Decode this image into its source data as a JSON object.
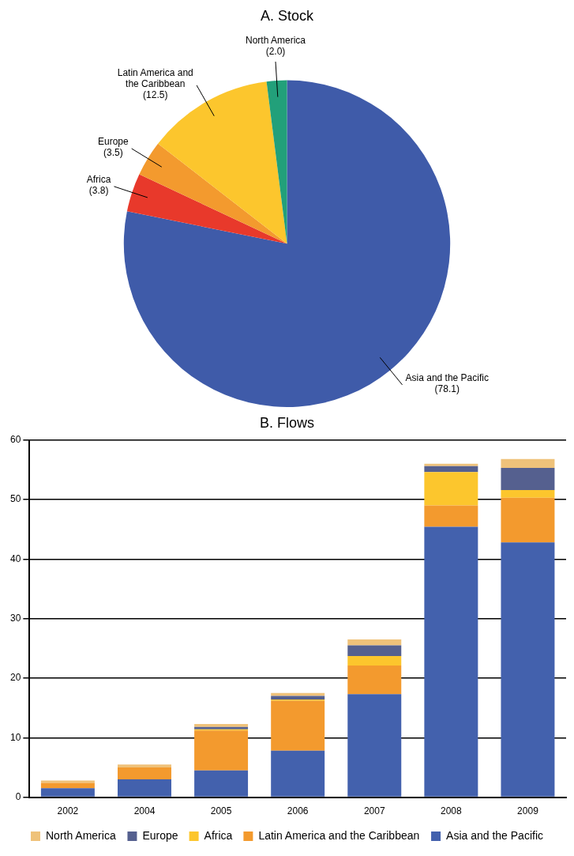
{
  "chart_data": [
    {
      "type": "pie",
      "title": "A. Stock",
      "categories": [
        "Asia and the Pacific",
        "Africa",
        "Europe",
        "Latin America and the Caribbean",
        "North America"
      ],
      "values": [
        78.1,
        3.8,
        3.5,
        12.5,
        2.0
      ],
      "value_labels": [
        "(78.1)",
        "(3.8)",
        "(3.5)",
        "(12.5)",
        "(2.0)"
      ],
      "colors": [
        "#3f5ba9",
        "#e8392b",
        "#f39a2e",
        "#fcc62d",
        "#22a07a"
      ]
    },
    {
      "type": "bar",
      "title": "B. Flows",
      "categories": [
        "2002",
        "2004",
        "2005",
        "2006",
        "2007",
        "2008",
        "2009"
      ],
      "stacked": true,
      "legend": "bottom",
      "grid": "y",
      "ylim": [
        0,
        60
      ],
      "yticks": [
        0,
        10,
        20,
        30,
        40,
        50,
        60
      ],
      "series": [
        {
          "name": "Asia and the Pacific",
          "color": "#4361ad",
          "values": [
            1.5,
            3.0,
            4.5,
            7.8,
            17.3,
            45.4,
            42.8
          ]
        },
        {
          "name": "Latin America and the Caribbean",
          "color": "#f39a2e",
          "values": [
            0.9,
            2.0,
            6.7,
            8.4,
            4.8,
            3.6,
            7.5
          ]
        },
        {
          "name": "Africa",
          "color": "#fcc62d",
          "values": [
            0,
            0,
            0.2,
            0.2,
            1.6,
            5.6,
            1.3
          ]
        },
        {
          "name": "Europe",
          "color": "#55608f",
          "values": [
            0,
            0,
            0.4,
            0.6,
            1.8,
            1.0,
            3.7
          ]
        },
        {
          "name": "North America",
          "color": "#efc27a",
          "values": [
            0.4,
            0.5,
            0.5,
            0.5,
            1.0,
            0.4,
            1.5
          ]
        }
      ]
    }
  ]
}
